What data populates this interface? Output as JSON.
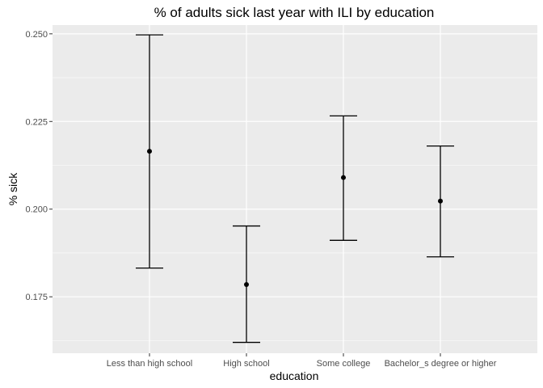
{
  "chart_data": {
    "type": "errorbar",
    "title": "% of adults sick last year with ILI by education",
    "xlabel": "education",
    "ylabel": "% sick",
    "categories": [
      "Less than high school",
      "High school",
      "Some college",
      "Bachelor_s degree or higher"
    ],
    "points": [
      {
        "category": "Less than high school",
        "mean": 0.2165,
        "lower": 0.1832,
        "upper": 0.2497
      },
      {
        "category": "High school",
        "mean": 0.1785,
        "lower": 0.162,
        "upper": 0.1952
      },
      {
        "category": "Some college",
        "mean": 0.209,
        "lower": 0.1911,
        "upper": 0.2266
      },
      {
        "category": "Bachelor_s degree or higher",
        "mean": 0.2023,
        "lower": 0.1864,
        "upper": 0.218
      }
    ],
    "ylim": [
      0.1589,
      0.2525
    ],
    "yticks": [
      0.175,
      0.2,
      0.225,
      0.25
    ],
    "ytick_labels": [
      "0.175",
      "0.200",
      "0.225",
      "0.250"
    ],
    "grid": true,
    "colors": {
      "panel": "#ebebeb",
      "grid": "#ffffff",
      "marks": "#000000",
      "tick_text": "#4d4d4d"
    }
  }
}
